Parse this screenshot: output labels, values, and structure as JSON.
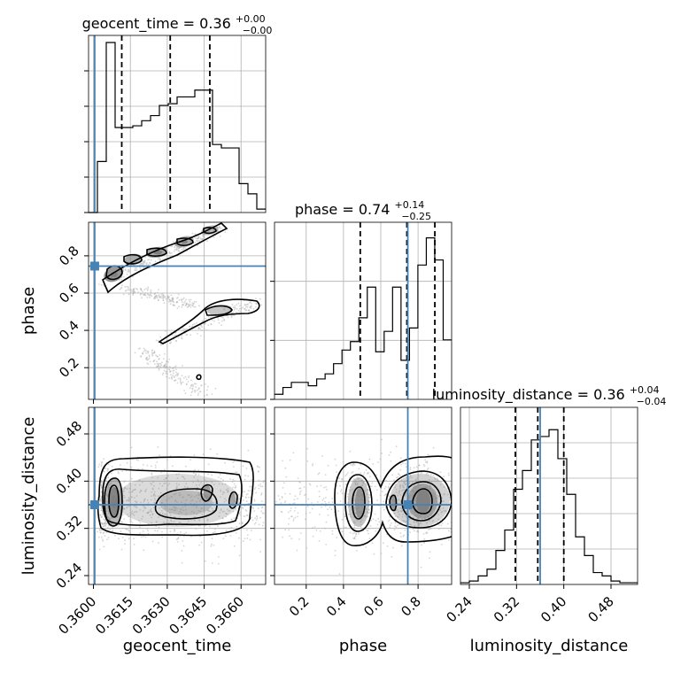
{
  "chart_data": {
    "type": "corner",
    "parameters": [
      "geocent_time",
      "phase",
      "luminosity_distance"
    ],
    "axis_labels": {
      "x": [
        "geocent_time",
        "phase",
        "luminosity_distance"
      ],
      "y": [
        "phase",
        "luminosity_distance"
      ]
    },
    "ranges": {
      "geocent_time": [
        0.3598,
        0.367
      ],
      "phase": [
        0.03,
        0.98
      ],
      "luminosity_distance": [
        0.225,
        0.525
      ]
    },
    "ticks": {
      "geocent_time": [
        {
          "value": 0.36,
          "label": "0.3600"
        },
        {
          "value": 0.3615,
          "label": "0.3615"
        },
        {
          "value": 0.363,
          "label": "0.3630"
        },
        {
          "value": 0.3645,
          "label": "0.3645"
        },
        {
          "value": 0.366,
          "label": "0.3660"
        }
      ],
      "phase": [
        {
          "value": 0.2,
          "label": "0.2"
        },
        {
          "value": 0.4,
          "label": "0.4"
        },
        {
          "value": 0.6,
          "label": "0.6"
        },
        {
          "value": 0.8,
          "label": "0.8"
        }
      ],
      "luminosity_distance": [
        {
          "value": 0.24,
          "label": "0.24"
        },
        {
          "value": 0.32,
          "label": "0.32"
        },
        {
          "value": 0.4,
          "label": "0.40"
        },
        {
          "value": 0.48,
          "label": "0.48"
        }
      ]
    },
    "titles": [
      {
        "name": "geocent_time",
        "median": "0.36",
        "plus": "+0.00",
        "minus": "−0.00"
      },
      {
        "name": "phase",
        "median": "0.74",
        "plus": "+0.14",
        "minus": "−0.25"
      },
      {
        "name": "luminosity_distance",
        "median": "0.36",
        "plus": "+0.04",
        "minus": "−0.04"
      }
    ],
    "truths": {
      "geocent_time": 0.36005,
      "phase": 0.745,
      "luminosity_distance": 0.36
    },
    "quantiles": {
      "geocent_time": [
        0.36115,
        0.36312,
        0.36473
      ],
      "phase": [
        0.49,
        0.74,
        0.89
      ],
      "luminosity_distance": [
        0.318,
        0.356,
        0.4
      ]
    },
    "histograms": {
      "geocent_time": [
        0.0,
        0.3,
        1.0,
        0.5,
        0.5,
        0.51,
        0.54,
        0.57,
        0.63,
        0.64,
        0.68,
        0.68,
        0.72,
        0.72,
        0.4,
        0.38,
        0.38,
        0.17,
        0.11,
        0.02
      ],
      "phase": [
        0.03,
        0.07,
        0.1,
        0.1,
        0.08,
        0.12,
        0.15,
        0.21,
        0.29,
        0.34,
        0.48,
        0.66,
        0.28,
        0.4,
        0.66,
        0.23,
        0.42,
        0.79,
        0.95,
        0.82,
        0.35
      ],
      "luminosity_distance": [
        0.01,
        0.02,
        0.05,
        0.09,
        0.2,
        0.32,
        0.56,
        0.67,
        0.85,
        0.87,
        0.91,
        0.74,
        0.53,
        0.28,
        0.17,
        0.07,
        0.05,
        0.02,
        0.01,
        0.01
      ]
    },
    "colors": {
      "truth": "#4682b4",
      "hist": "#000000",
      "points": "#b3b3b3",
      "density": "#7f7f7f",
      "grid": "#b0b0b0"
    },
    "grid": true
  }
}
